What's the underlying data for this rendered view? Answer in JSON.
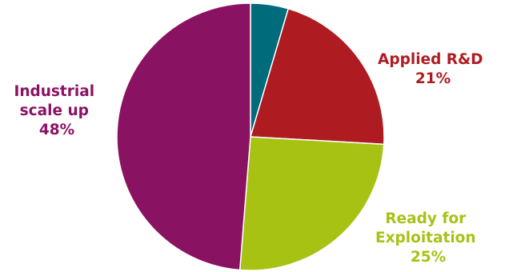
{
  "chart_data": {
    "type": "pie",
    "title": "",
    "start_angle_deg": 0,
    "direction": "clockwise",
    "slices": [
      {
        "value": 4.5,
        "color": "#006b7b",
        "label_lines": []
      },
      {
        "value": 21,
        "color": "#ae1c22",
        "label_lines": [
          "Applied R&D",
          "21%"
        ]
      },
      {
        "value": 25,
        "color": "#a8c214",
        "label_lines": [
          "Ready for",
          "Exploitation",
          "25%"
        ]
      },
      {
        "value": 48,
        "color": "#8a1262",
        "label_lines": [
          "Industrial",
          "scale up",
          "48%"
        ]
      }
    ]
  }
}
